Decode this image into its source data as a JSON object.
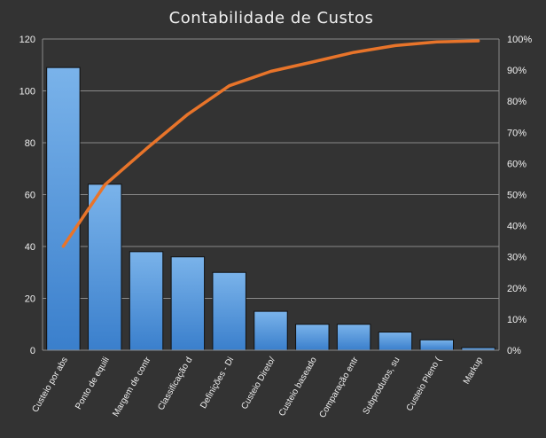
{
  "chart_data": {
    "type": "bar",
    "title": "Contabilidade  de Custos",
    "categories": [
      "Custeio por abs",
      "Ponto de equili",
      "Margem de contr",
      "Classificação d",
      "Definições - Di",
      "Custeio Direto/",
      "Custeio baseado",
      "Comparação entr",
      "Subprodutos, su",
      "Custeio Pleno (",
      "Markup"
    ],
    "series": [
      {
        "type": "bar",
        "axis": "left",
        "values": [
          109,
          64,
          38,
          36,
          30,
          15,
          10,
          10,
          7,
          4,
          1
        ]
      },
      {
        "type": "line",
        "axis": "right",
        "values": [
          33.4,
          53.1,
          64.7,
          75.8,
          85.0,
          89.6,
          92.6,
          95.7,
          97.9,
          99.1,
          99.4
        ]
      }
    ],
    "ylim": [
      0,
      120
    ],
    "yticks": [
      "0",
      "20",
      "40",
      "60",
      "80",
      "100",
      "120"
    ],
    "y2lim": [
      0,
      100
    ],
    "y2ticks": [
      "0%",
      "10%",
      "20%",
      "30%",
      "40%",
      "50%",
      "60%",
      "70%",
      "80%",
      "90%",
      "100%"
    ],
    "grid": true,
    "legend": "none",
    "colors": {
      "background": "#333333",
      "bar_top": "#7ab3ea",
      "bar_bottom": "#3a7fcc",
      "bar_stroke": "#111111",
      "line": "#e8742a",
      "grid": "#8a8a8a",
      "text": "#f0f0f0"
    }
  }
}
